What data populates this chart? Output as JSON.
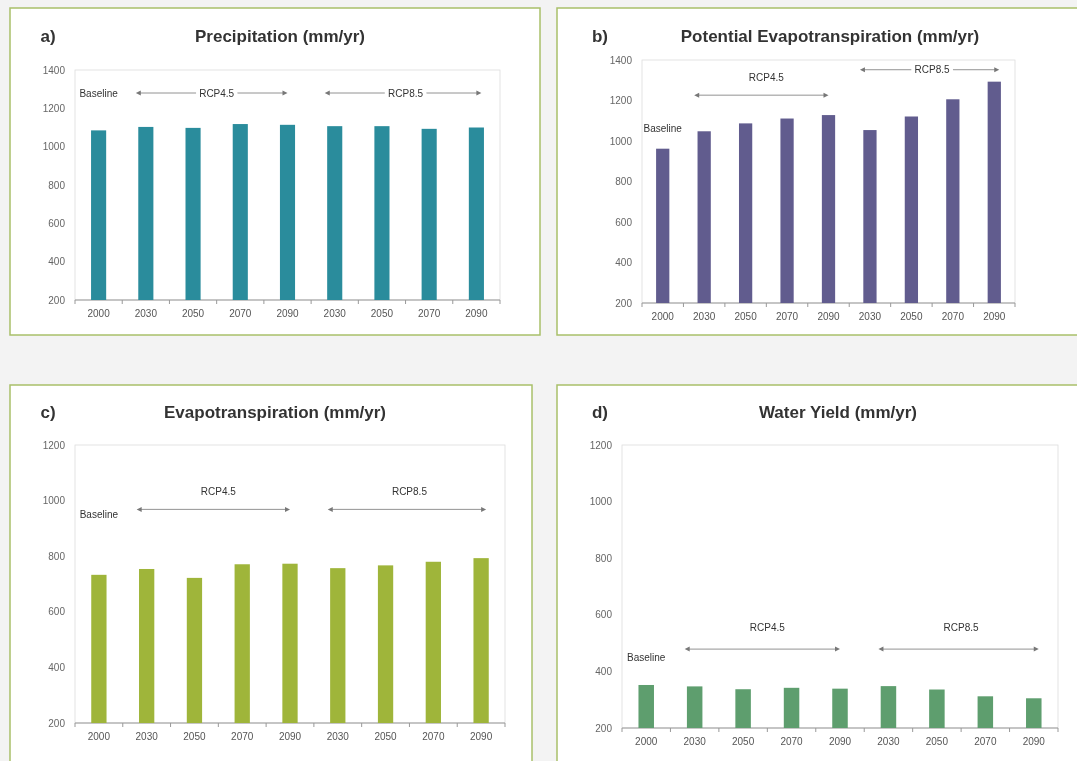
{
  "chart_data": [
    {
      "type": "bar",
      "title": "Precipitation (mm/yr)",
      "categories": [
        "2000",
        "2030",
        "2050",
        "2070",
        "2090",
        "2030",
        "2050",
        "2070",
        "2090"
      ],
      "values": [
        1085,
        1103,
        1098,
        1118,
        1114,
        1107,
        1107,
        1093,
        1100
      ],
      "color": "#2a8c9c",
      "ylim": [
        200,
        1400
      ],
      "yticks": [
        200,
        400,
        600,
        800,
        1000,
        1200,
        1400
      ],
      "annotations": [
        "a)",
        "Baseline",
        "RCP4.5",
        "RCP8.5"
      ]
    },
    {
      "type": "bar",
      "title": "Potential Evapotranspiration (mm/yr)",
      "categories": [
        "2000",
        "2030",
        "2050",
        "2070",
        "2090",
        "2030",
        "2050",
        "2070",
        "2090"
      ],
      "values": [
        962,
        1048,
        1087,
        1111,
        1128,
        1054,
        1121,
        1206,
        1293
      ],
      "color": "#615c8e",
      "ylim": [
        200,
        1400
      ],
      "yticks": [
        200,
        400,
        600,
        800,
        1000,
        1200,
        1400
      ],
      "annotations": [
        "b)",
        "Baseline",
        "RCP4.5",
        "RCP8.5"
      ]
    },
    {
      "type": "bar",
      "title": "Evapotranspiration (mm/yr)",
      "categories": [
        "2000",
        "2030",
        "2050",
        "2070",
        "2090",
        "2030",
        "2050",
        "2070",
        "2090"
      ],
      "values": [
        733,
        754,
        722,
        771,
        773,
        757,
        767,
        780,
        793
      ],
      "color": "#9fb53a",
      "ylim": [
        200,
        1200
      ],
      "yticks": [
        200,
        400,
        600,
        800,
        1000,
        1200
      ],
      "annotations": [
        "c)",
        "Baseline",
        "RCP4.5",
        "RCP8.5"
      ]
    },
    {
      "type": "bar",
      "title": "Water Yield (mm/yr)",
      "categories": [
        "2000",
        "2030",
        "2050",
        "2070",
        "2090",
        "2030",
        "2050",
        "2070",
        "2090"
      ],
      "values": [
        352,
        347,
        337,
        342,
        339,
        348,
        336,
        312,
        305
      ],
      "color": "#5e9e6e",
      "ylim": [
        200,
        1200
      ],
      "yticks": [
        200,
        400,
        600,
        800,
        1000,
        1200
      ],
      "annotations": [
        "d)",
        "Baseline",
        "RCP4.5",
        "RCP8.5"
      ]
    }
  ]
}
